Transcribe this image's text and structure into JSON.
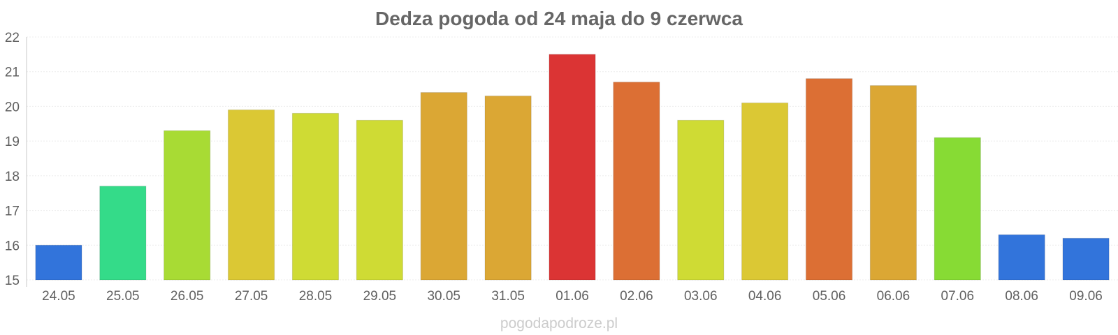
{
  "chart_data": {
    "type": "bar",
    "title": "Dedza pogoda od 24 maja do 9 czerwca",
    "categories": [
      "24.05",
      "25.05",
      "26.05",
      "27.05",
      "28.05",
      "29.05",
      "30.05",
      "31.05",
      "01.06",
      "02.06",
      "03.06",
      "04.06",
      "05.06",
      "06.06",
      "07.06",
      "08.06",
      "09.06"
    ],
    "values": [
      16.0,
      17.7,
      19.3,
      19.9,
      19.8,
      19.6,
      20.4,
      20.3,
      21.5,
      20.7,
      19.6,
      20.1,
      20.8,
      20.6,
      19.1,
      16.3,
      16.2
    ],
    "colors": [
      "#3274db",
      "#34db89",
      "#a8db34",
      "#dbc834",
      "#cfdb34",
      "#cfdb34",
      "#dba734",
      "#dba734",
      "#db3434",
      "#dc6f34",
      "#cfdb34",
      "#dbc834",
      "#dc6f34",
      "#dba734",
      "#87db34",
      "#3274db",
      "#3274db"
    ],
    "ylim": [
      15,
      22
    ],
    "yticks": [
      15,
      16,
      17,
      18,
      19,
      20,
      21,
      22
    ],
    "xlabel": "",
    "ylabel": "",
    "grid": true,
    "legend": "none"
  },
  "footer": {
    "source": "pogodapodroze.pl"
  }
}
